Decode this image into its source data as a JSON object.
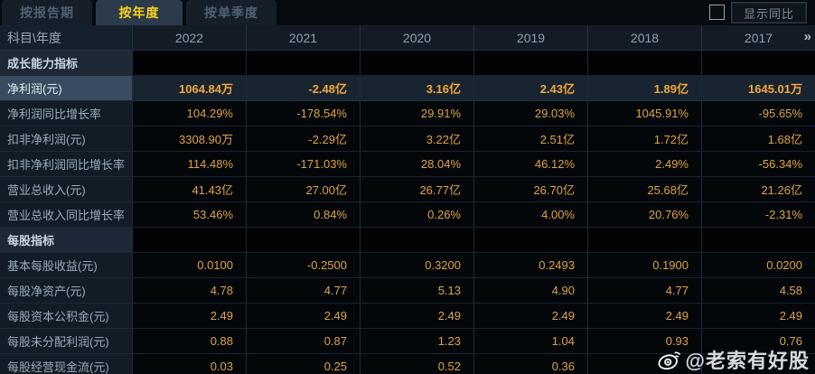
{
  "tabs": [
    {
      "label": "按报告期",
      "active": false
    },
    {
      "label": "按年度",
      "active": true
    },
    {
      "label": "按单季度",
      "active": false
    }
  ],
  "controls": {
    "show_yoy_label": "显示同比",
    "checkbox_checked": false
  },
  "table": {
    "corner_header": "科目\\年度",
    "years": [
      "2022",
      "2021",
      "2020",
      "2019",
      "2018",
      "2017"
    ],
    "more_years_icon": "»",
    "rows": [
      {
        "type": "section",
        "label": "成长能力指标"
      },
      {
        "type": "data",
        "label": "净利润(元)",
        "highlight": true,
        "values": [
          "1064.84万",
          "-2.48亿",
          "3.16亿",
          "2.43亿",
          "1.89亿",
          "1645.01万"
        ]
      },
      {
        "type": "data",
        "label": "净利润同比增长率",
        "values": [
          "104.29%",
          "-178.54%",
          "29.91%",
          "29.03%",
          "1045.91%",
          "-95.65%"
        ]
      },
      {
        "type": "data",
        "label": "扣非净利润(元)",
        "values": [
          "3308.90万",
          "-2.29亿",
          "3.22亿",
          "2.51亿",
          "1.72亿",
          "1.68亿"
        ]
      },
      {
        "type": "data",
        "label": "扣非净利润同比增长率",
        "values": [
          "114.48%",
          "-171.03%",
          "28.04%",
          "46.12%",
          "2.49%",
          "-56.34%"
        ]
      },
      {
        "type": "data",
        "label": "营业总收入(元)",
        "values": [
          "41.43亿",
          "27.00亿",
          "26.77亿",
          "26.70亿",
          "25.68亿",
          "21.26亿"
        ]
      },
      {
        "type": "data",
        "label": "营业总收入同比增长率",
        "values": [
          "53.46%",
          "0.84%",
          "0.26%",
          "4.00%",
          "20.76%",
          "-2.31%"
        ]
      },
      {
        "type": "section",
        "label": "每股指标"
      },
      {
        "type": "data",
        "label": "基本每股收益(元)",
        "values": [
          "0.0100",
          "-0.2500",
          "0.3200",
          "0.2493",
          "0.1900",
          "0.0200"
        ]
      },
      {
        "type": "data",
        "label": "每股净资产(元)",
        "values": [
          "4.78",
          "4.77",
          "5.13",
          "4.90",
          "4.77",
          "4.58"
        ]
      },
      {
        "type": "data",
        "label": "每股资本公积金(元)",
        "values": [
          "2.49",
          "2.49",
          "2.49",
          "2.49",
          "2.49",
          "2.49"
        ]
      },
      {
        "type": "data",
        "label": "每股未分配利润(元)",
        "values": [
          "0.88",
          "0.87",
          "1.23",
          "1.04",
          "0.93",
          "0.76"
        ]
      },
      {
        "type": "data",
        "label": "每股经营现金流(元)",
        "values": [
          "0.03",
          "0.25",
          "0.52",
          "0.36",
          "",
          ""
        ]
      }
    ]
  },
  "watermark": {
    "handle": "@老索有好股",
    "icon": "weibo"
  },
  "colors": {
    "value_text": "#dda43e",
    "active_tab_text": "#fdd017",
    "highlight_row_label_bg": "#394c5f",
    "section_row_bg": "#1d2936",
    "table_bg": "#04070a"
  }
}
